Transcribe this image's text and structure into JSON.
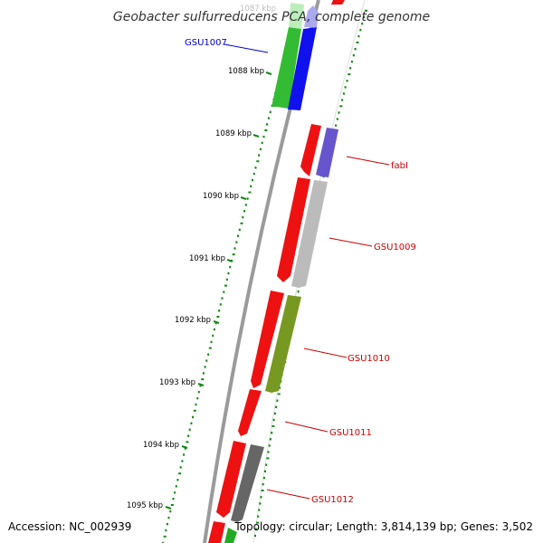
{
  "title": "Geobacter sulfurreducens PCA, complete genome",
  "accession": "Accession: NC_002939",
  "topology": "Topology: circular; Length: 3,814,139 bp; Genes: 3,502",
  "ruler_labels": [
    "1087 kbp",
    "1088 kbp",
    "1089 kbp",
    "1090 kbp",
    "1091 kbp",
    "1092 kbp",
    "1093 kbp",
    "1094 kbp",
    "1095 kbp"
  ],
  "gene_labels": [
    {
      "text": "GSU1007",
      "color": "#0000cc"
    },
    {
      "text": "fabI",
      "color": "#cc0000"
    },
    {
      "text": "GSU1009",
      "color": "#cc0000"
    },
    {
      "text": "GSU1010",
      "color": "#cc0000"
    },
    {
      "text": "GSU1011",
      "color": "#cc0000"
    },
    {
      "text": "GSU1012",
      "color": "#cc0000"
    }
  ],
  "colors": {
    "backbone": "#888888",
    "tick_green": "#118811",
    "cds_red": "#ee1111",
    "gene_green": "#33bb33",
    "gene_blue": "#1111ee",
    "gene_purple": "#6655cc",
    "gene_gray_light": "#bbbbbb",
    "gene_olive": "#779922",
    "gene_gray_dark": "#666666",
    "gene_lavender": "#aaaaee"
  }
}
